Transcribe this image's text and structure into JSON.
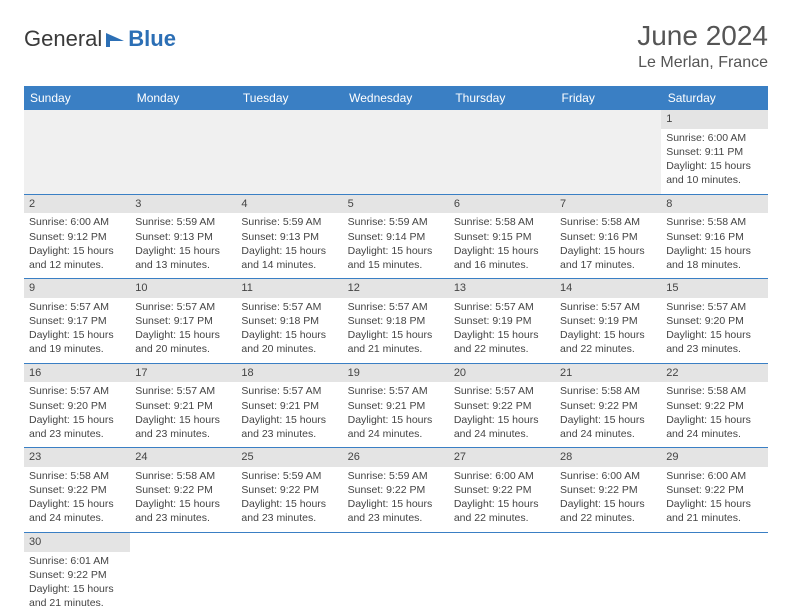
{
  "logo": {
    "text1": "General",
    "text2": "Blue"
  },
  "header": {
    "title": "June 2024",
    "location": "Le Merlan, France"
  },
  "dayHeaders": [
    "Sunday",
    "Monday",
    "Tuesday",
    "Wednesday",
    "Thursday",
    "Friday",
    "Saturday"
  ],
  "colors": {
    "headerBg": "#3a7fc4",
    "dayBg": "#e4e4e4",
    "border": "#3a7fc4"
  },
  "weeks": [
    [
      null,
      null,
      null,
      null,
      null,
      null,
      {
        "d": "1",
        "sr": "6:00 AM",
        "ss": "9:11 PM",
        "dl": "15 hours and 10 minutes."
      }
    ],
    [
      {
        "d": "2",
        "sr": "6:00 AM",
        "ss": "9:12 PM",
        "dl": "15 hours and 12 minutes."
      },
      {
        "d": "3",
        "sr": "5:59 AM",
        "ss": "9:13 PM",
        "dl": "15 hours and 13 minutes."
      },
      {
        "d": "4",
        "sr": "5:59 AM",
        "ss": "9:13 PM",
        "dl": "15 hours and 14 minutes."
      },
      {
        "d": "5",
        "sr": "5:59 AM",
        "ss": "9:14 PM",
        "dl": "15 hours and 15 minutes."
      },
      {
        "d": "6",
        "sr": "5:58 AM",
        "ss": "9:15 PM",
        "dl": "15 hours and 16 minutes."
      },
      {
        "d": "7",
        "sr": "5:58 AM",
        "ss": "9:16 PM",
        "dl": "15 hours and 17 minutes."
      },
      {
        "d": "8",
        "sr": "5:58 AM",
        "ss": "9:16 PM",
        "dl": "15 hours and 18 minutes."
      }
    ],
    [
      {
        "d": "9",
        "sr": "5:57 AM",
        "ss": "9:17 PM",
        "dl": "15 hours and 19 minutes."
      },
      {
        "d": "10",
        "sr": "5:57 AM",
        "ss": "9:17 PM",
        "dl": "15 hours and 20 minutes."
      },
      {
        "d": "11",
        "sr": "5:57 AM",
        "ss": "9:18 PM",
        "dl": "15 hours and 20 minutes."
      },
      {
        "d": "12",
        "sr": "5:57 AM",
        "ss": "9:18 PM",
        "dl": "15 hours and 21 minutes."
      },
      {
        "d": "13",
        "sr": "5:57 AM",
        "ss": "9:19 PM",
        "dl": "15 hours and 22 minutes."
      },
      {
        "d": "14",
        "sr": "5:57 AM",
        "ss": "9:19 PM",
        "dl": "15 hours and 22 minutes."
      },
      {
        "d": "15",
        "sr": "5:57 AM",
        "ss": "9:20 PM",
        "dl": "15 hours and 23 minutes."
      }
    ],
    [
      {
        "d": "16",
        "sr": "5:57 AM",
        "ss": "9:20 PM",
        "dl": "15 hours and 23 minutes."
      },
      {
        "d": "17",
        "sr": "5:57 AM",
        "ss": "9:21 PM",
        "dl": "15 hours and 23 minutes."
      },
      {
        "d": "18",
        "sr": "5:57 AM",
        "ss": "9:21 PM",
        "dl": "15 hours and 23 minutes."
      },
      {
        "d": "19",
        "sr": "5:57 AM",
        "ss": "9:21 PM",
        "dl": "15 hours and 24 minutes."
      },
      {
        "d": "20",
        "sr": "5:57 AM",
        "ss": "9:22 PM",
        "dl": "15 hours and 24 minutes."
      },
      {
        "d": "21",
        "sr": "5:58 AM",
        "ss": "9:22 PM",
        "dl": "15 hours and 24 minutes."
      },
      {
        "d": "22",
        "sr": "5:58 AM",
        "ss": "9:22 PM",
        "dl": "15 hours and 24 minutes."
      }
    ],
    [
      {
        "d": "23",
        "sr": "5:58 AM",
        "ss": "9:22 PM",
        "dl": "15 hours and 24 minutes."
      },
      {
        "d": "24",
        "sr": "5:58 AM",
        "ss": "9:22 PM",
        "dl": "15 hours and 23 minutes."
      },
      {
        "d": "25",
        "sr": "5:59 AM",
        "ss": "9:22 PM",
        "dl": "15 hours and 23 minutes."
      },
      {
        "d": "26",
        "sr": "5:59 AM",
        "ss": "9:22 PM",
        "dl": "15 hours and 23 minutes."
      },
      {
        "d": "27",
        "sr": "6:00 AM",
        "ss": "9:22 PM",
        "dl": "15 hours and 22 minutes."
      },
      {
        "d": "28",
        "sr": "6:00 AM",
        "ss": "9:22 PM",
        "dl": "15 hours and 22 minutes."
      },
      {
        "d": "29",
        "sr": "6:00 AM",
        "ss": "9:22 PM",
        "dl": "15 hours and 21 minutes."
      }
    ],
    [
      {
        "d": "30",
        "sr": "6:01 AM",
        "ss": "9:22 PM",
        "dl": "15 hours and 21 minutes."
      },
      null,
      null,
      null,
      null,
      null,
      null
    ]
  ],
  "labels": {
    "sunrise": "Sunrise: ",
    "sunset": "Sunset: ",
    "daylight": "Daylight: "
  }
}
